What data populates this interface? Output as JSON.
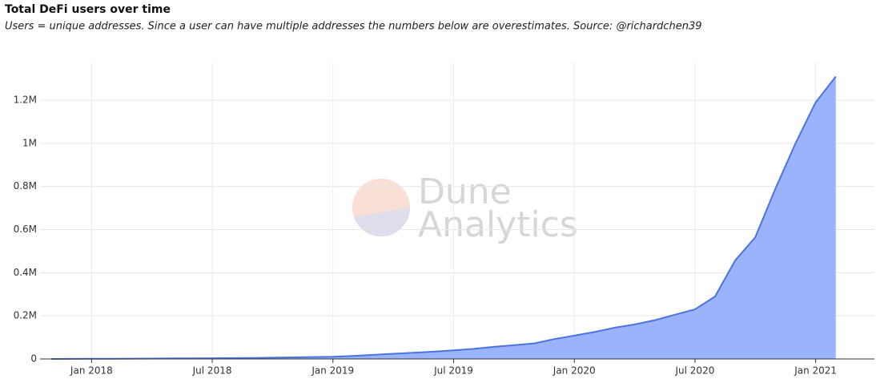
{
  "chart_data": {
    "type": "area",
    "title": "Total DeFi users over time",
    "subtitle": "Users = unique addresses. Since a user can have multiple addresses the numbers below are overestimates. Source: @richardchen39",
    "watermark": [
      "Dune",
      "Analytics"
    ],
    "x": [
      "2017-11",
      "2017-12",
      "2018-01",
      "2018-02",
      "2018-03",
      "2018-04",
      "2018-05",
      "2018-06",
      "2018-07",
      "2018-08",
      "2018-09",
      "2018-10",
      "2018-11",
      "2018-12",
      "2019-01",
      "2019-02",
      "2019-03",
      "2019-04",
      "2019-05",
      "2019-06",
      "2019-07",
      "2019-08",
      "2019-09",
      "2019-10",
      "2019-11",
      "2019-12",
      "2020-01",
      "2020-02",
      "2020-03",
      "2020-04",
      "2020-05",
      "2020-06",
      "2020-07",
      "2020-08",
      "2020-09",
      "2020-10",
      "2020-11",
      "2020-12",
      "2021-01",
      "2021-02"
    ],
    "values": [
      0,
      500,
      1000,
      1300,
      1600,
      2000,
      2500,
      2800,
      3200,
      4000,
      5000,
      6000,
      7500,
      9000,
      10000,
      14000,
      19000,
      24000,
      29000,
      34000,
      40000,
      47000,
      56000,
      64000,
      72000,
      92000,
      108000,
      125000,
      145000,
      160000,
      180000,
      205000,
      230000,
      290000,
      457000,
      565000,
      790000,
      1000000,
      1190000,
      1310000
    ],
    "color": "#4a74e0",
    "fill": "#9ab3fb",
    "xlim": [
      "2017-10",
      "2021-04"
    ],
    "xticks": [
      {
        "value": "2018-01",
        "label": "Jan 2018"
      },
      {
        "value": "2018-07",
        "label": "Jul 2018"
      },
      {
        "value": "2019-01",
        "label": "Jan 2019"
      },
      {
        "value": "2019-07",
        "label": "Jul 2019"
      },
      {
        "value": "2020-01",
        "label": "Jan 2020"
      },
      {
        "value": "2020-07",
        "label": "Jul 2020"
      },
      {
        "value": "2021-01",
        "label": "Jan 2021"
      }
    ],
    "ylim": [
      0,
      1375000
    ],
    "yticks": [
      0,
      {
        "value": 200000,
        "label": "0.2M"
      },
      {
        "value": 400000,
        "label": "0.4M"
      },
      {
        "value": 600000,
        "label": "0.6M"
      },
      {
        "value": 800000,
        "label": "0.8M"
      },
      {
        "value": 1000000,
        "label": "1M"
      },
      {
        "value": 1200000,
        "label": "1.2M"
      }
    ],
    "grid": true
  }
}
